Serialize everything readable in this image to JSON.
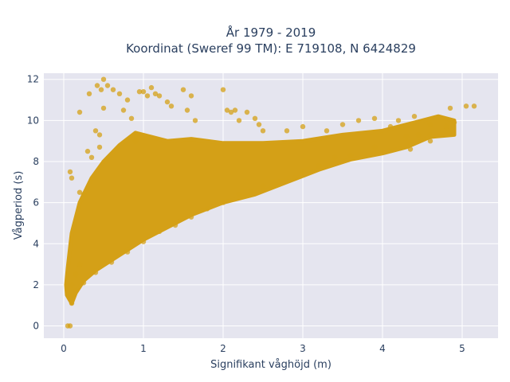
{
  "chart_data": {
    "type": "scatter",
    "title_line1": "År 1979 - 2019",
    "title_line2": "Koordinat (Sweref 99 TM): E 719108, N 6424829",
    "xlabel": "Signifikant våghöjd (m)",
    "ylabel": "Vågperiod (s)",
    "xlim": [
      -0.25,
      5.45
    ],
    "ylim": [
      -0.6,
      12.3
    ],
    "x_ticks": [
      "0",
      "1",
      "2",
      "3",
      "4",
      "5"
    ],
    "y_ticks": [
      "0",
      "2",
      "4",
      "6",
      "8",
      "10",
      "12"
    ],
    "grid": true,
    "marker_color": "#D4A017",
    "background_color": "#E5E5EF",
    "points": [
      [
        0.05,
        0.0
      ],
      [
        0.08,
        0.0
      ],
      [
        0.08,
        1.3
      ],
      [
        0.1,
        1.1
      ],
      [
        0.12,
        1.5
      ],
      [
        0.1,
        2.0
      ],
      [
        0.15,
        2.5
      ],
      [
        0.2,
        3.0
      ],
      [
        0.08,
        7.5
      ],
      [
        0.1,
        7.2
      ],
      [
        0.2,
        10.4
      ],
      [
        0.2,
        6.5
      ],
      [
        0.25,
        6.4
      ],
      [
        0.3,
        8.5
      ],
      [
        0.35,
        8.2
      ],
      [
        0.4,
        9.5
      ],
      [
        0.45,
        9.3
      ],
      [
        0.45,
        8.7
      ],
      [
        0.32,
        11.3
      ],
      [
        0.42,
        11.7
      ],
      [
        0.47,
        11.5
      ],
      [
        0.55,
        11.7
      ],
      [
        0.5,
        10.6
      ],
      [
        0.5,
        12.0
      ],
      [
        0.62,
        11.5
      ],
      [
        0.7,
        11.3
      ],
      [
        0.75,
        10.5
      ],
      [
        0.8,
        11.0
      ],
      [
        0.85,
        10.1
      ],
      [
        0.9,
        9.0
      ],
      [
        0.95,
        11.4
      ],
      [
        1.0,
        11.4
      ],
      [
        1.05,
        11.2
      ],
      [
        1.1,
        11.6
      ],
      [
        1.15,
        11.3
      ],
      [
        1.2,
        11.2
      ],
      [
        1.3,
        10.9
      ],
      [
        1.35,
        10.7
      ],
      [
        1.5,
        11.5
      ],
      [
        1.55,
        10.5
      ],
      [
        1.6,
        11.2
      ],
      [
        1.65,
        10.0
      ],
      [
        2.0,
        11.5
      ],
      [
        2.05,
        10.5
      ],
      [
        2.1,
        10.4
      ],
      [
        2.15,
        10.5
      ],
      [
        2.2,
        10.0
      ],
      [
        2.3,
        10.4
      ],
      [
        2.4,
        10.1
      ],
      [
        2.45,
        9.8
      ],
      [
        2.5,
        9.5
      ],
      [
        2.8,
        9.5
      ],
      [
        3.0,
        9.7
      ],
      [
        3.3,
        9.5
      ],
      [
        3.5,
        9.8
      ],
      [
        3.7,
        10.0
      ],
      [
        3.9,
        10.1
      ],
      [
        4.1,
        9.7
      ],
      [
        4.2,
        10.0
      ],
      [
        4.4,
        10.2
      ],
      [
        4.6,
        9.8
      ],
      [
        4.8,
        9.7
      ],
      [
        4.85,
        10.6
      ],
      [
        4.9,
        9.9
      ],
      [
        5.05,
        10.7
      ],
      [
        5.15,
        10.7
      ],
      [
        4.6,
        9.3
      ],
      [
        4.6,
        9.0
      ],
      [
        4.45,
        9.3
      ],
      [
        4.3,
        9.2
      ],
      [
        4.35,
        8.6
      ],
      [
        3.9,
        8.7
      ],
      [
        3.6,
        8.3
      ],
      [
        3.4,
        8.2
      ],
      [
        3.2,
        7.8
      ],
      [
        3.0,
        7.5
      ],
      [
        2.9,
        7.2
      ],
      [
        2.7,
        7.0
      ],
      [
        2.5,
        6.8
      ],
      [
        2.35,
        6.5
      ],
      [
        2.2,
        6.4
      ],
      [
        2.0,
        6.0
      ],
      [
        1.8,
        5.7
      ],
      [
        1.6,
        5.3
      ],
      [
        1.4,
        4.9
      ],
      [
        1.2,
        4.6
      ],
      [
        1.0,
        4.1
      ],
      [
        0.8,
        3.6
      ],
      [
        0.6,
        3.1
      ],
      [
        0.4,
        2.6
      ],
      [
        0.25,
        2.1
      ],
      [
        0.15,
        1.7
      ]
    ]
  }
}
